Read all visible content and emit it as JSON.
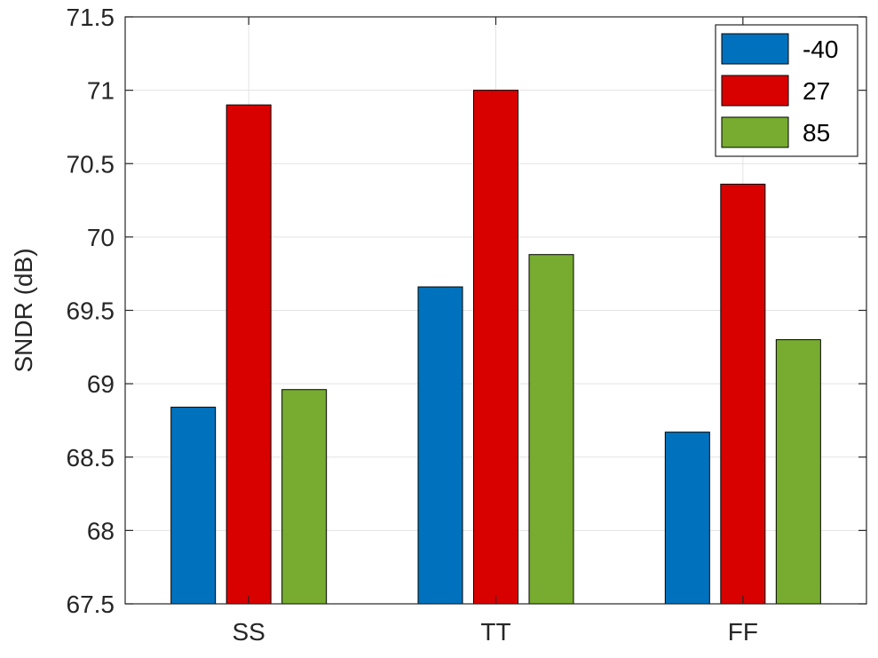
{
  "chart_data": {
    "type": "bar",
    "categories": [
      "SS",
      "TT",
      "FF"
    ],
    "series": [
      {
        "name": "-40",
        "color": "#0072BD",
        "values": [
          68.84,
          69.66,
          68.67
        ]
      },
      {
        "name": "27",
        "color": "#D90000",
        "values": [
          70.9,
          71.0,
          70.36
        ]
      },
      {
        "name": "85",
        "color": "#77AC30",
        "values": [
          68.96,
          69.88,
          69.3
        ]
      }
    ],
    "ylabel": "SNDR (dB)",
    "ylim": [
      67.5,
      71.5
    ],
    "yticks": [
      "67.5",
      "68",
      "68.5",
      "69",
      "69.5",
      "70",
      "70.5",
      "71",
      "71.5"
    ],
    "grid": true,
    "legend_position": "top-right"
  }
}
